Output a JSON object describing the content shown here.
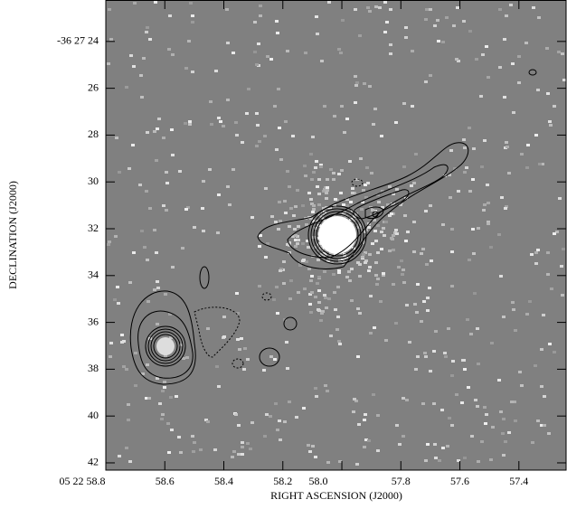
{
  "chart_data": {
    "type": "image",
    "xlabel": "RIGHT ASCENSION (J2000)",
    "ylabel": "DECLINATION (J2000)",
    "xlim": [
      58.8,
      57.24
    ],
    "ylim": [
      22.23,
      42.31
    ],
    "xticks": [
      {
        "value": 58.8,
        "label": "05 22 58.8"
      },
      58.6,
      58.4,
      58.2,
      {
        "value": 58.0,
        "label": "58.0"
      },
      57.8,
      57.6,
      57.4
    ],
    "yticks": [
      {
        "value": 24,
        "label": "-36 27 24"
      },
      26,
      28,
      30,
      32,
      34,
      36,
      38,
      40,
      42
    ]
  }
}
